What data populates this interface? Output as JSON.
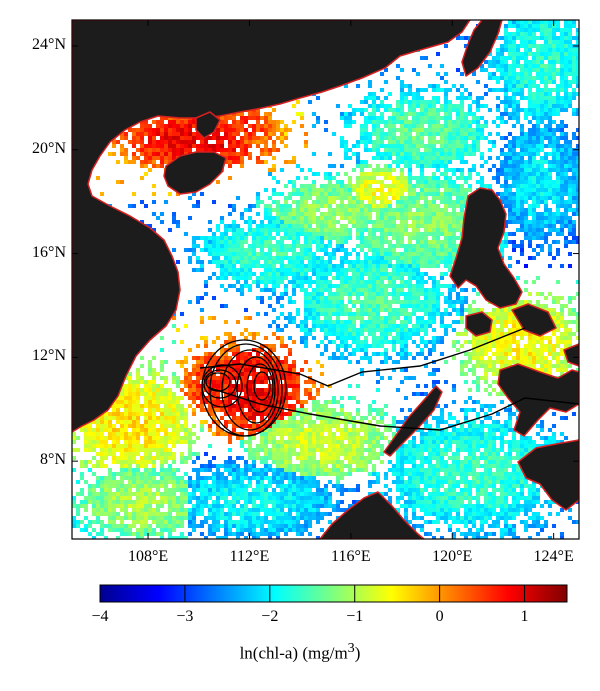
{
  "map": {
    "lat_labels": [
      {
        "text": "24°N",
        "value": 24
      },
      {
        "text": "20°N",
        "value": 20
      },
      {
        "text": "16°N",
        "value": 16
      },
      {
        "text": "12°N",
        "value": 12
      },
      {
        "text": "8°N",
        "value": 8
      }
    ],
    "lon_labels": [
      {
        "text": "108°E",
        "value": 108
      },
      {
        "text": "112°E",
        "value": 112
      },
      {
        "text": "116°E",
        "value": 116
      },
      {
        "text": "120°E",
        "value": 120
      },
      {
        "text": "124°E",
        "value": 124
      }
    ],
    "lon_range": [
      105.0,
      125.0
    ],
    "lat_range": [
      5.0,
      25.0
    ],
    "land_color": "#1c1c1c",
    "coast_color": "#d42020",
    "contour_color": "#000000"
  },
  "colorbar": {
    "ticks": [
      {
        "text": "−4",
        "value": -4
      },
      {
        "text": "−3",
        "value": -3
      },
      {
        "text": "−2",
        "value": -2
      },
      {
        "text": "−1",
        "value": -1
      },
      {
        "text": "0",
        "value": 0
      },
      {
        "text": "1",
        "value": 1
      }
    ],
    "range": [
      -4,
      1.5
    ],
    "label": "ln(chl-a) (mg/m",
    "label_sup": "3",
    "label_end": ")"
  }
}
